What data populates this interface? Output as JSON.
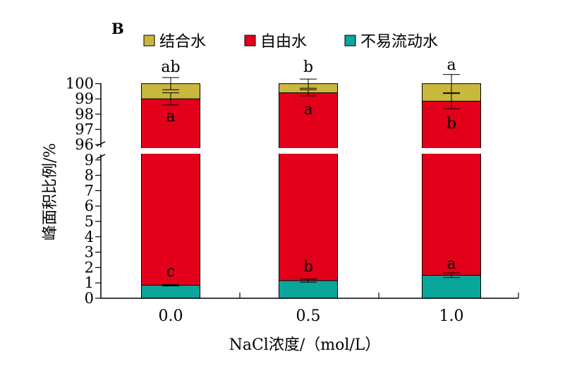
{
  "chart_data": {
    "type": "bar",
    "stacked": true,
    "axis_break": true,
    "panel_label": "B",
    "xlabel": "NaCl浓度/（mol/L）",
    "ylabel": "峰面积比例/%",
    "categories": [
      "0.0",
      "0.5",
      "1.0"
    ],
    "y_ticks_lower": [
      "0",
      "1",
      "2",
      "3",
      "4",
      "5",
      "6",
      "7",
      "8",
      "9"
    ],
    "y_ticks_upper": [
      "96",
      "97",
      "98",
      "99",
      "100"
    ],
    "ylim_lower": [
      0,
      9.5
    ],
    "ylim_upper": [
      95.4,
      100
    ],
    "legend_position": "top",
    "series": [
      {
        "name": "不易流动水",
        "color": "#0aa59b",
        "values": [
          0.85,
          1.15,
          1.5
        ],
        "errors": [
          0.05,
          0.1,
          0.15
        ],
        "letters": [
          "c",
          "b",
          "a"
        ]
      },
      {
        "name": "自由水",
        "color": "#e3001b",
        "values": [
          98.15,
          98.25,
          97.35
        ],
        "errors": [
          0.4,
          0.2,
          0.5
        ],
        "letters": [
          "a",
          "a",
          "b"
        ]
      },
      {
        "name": "结合水",
        "color": "#c9b73e",
        "values": [
          1.0,
          0.6,
          1.15
        ],
        "errors": [
          0.4,
          0.3,
          0.6
        ],
        "letters": [
          "ab",
          "b",
          "a"
        ]
      }
    ]
  }
}
